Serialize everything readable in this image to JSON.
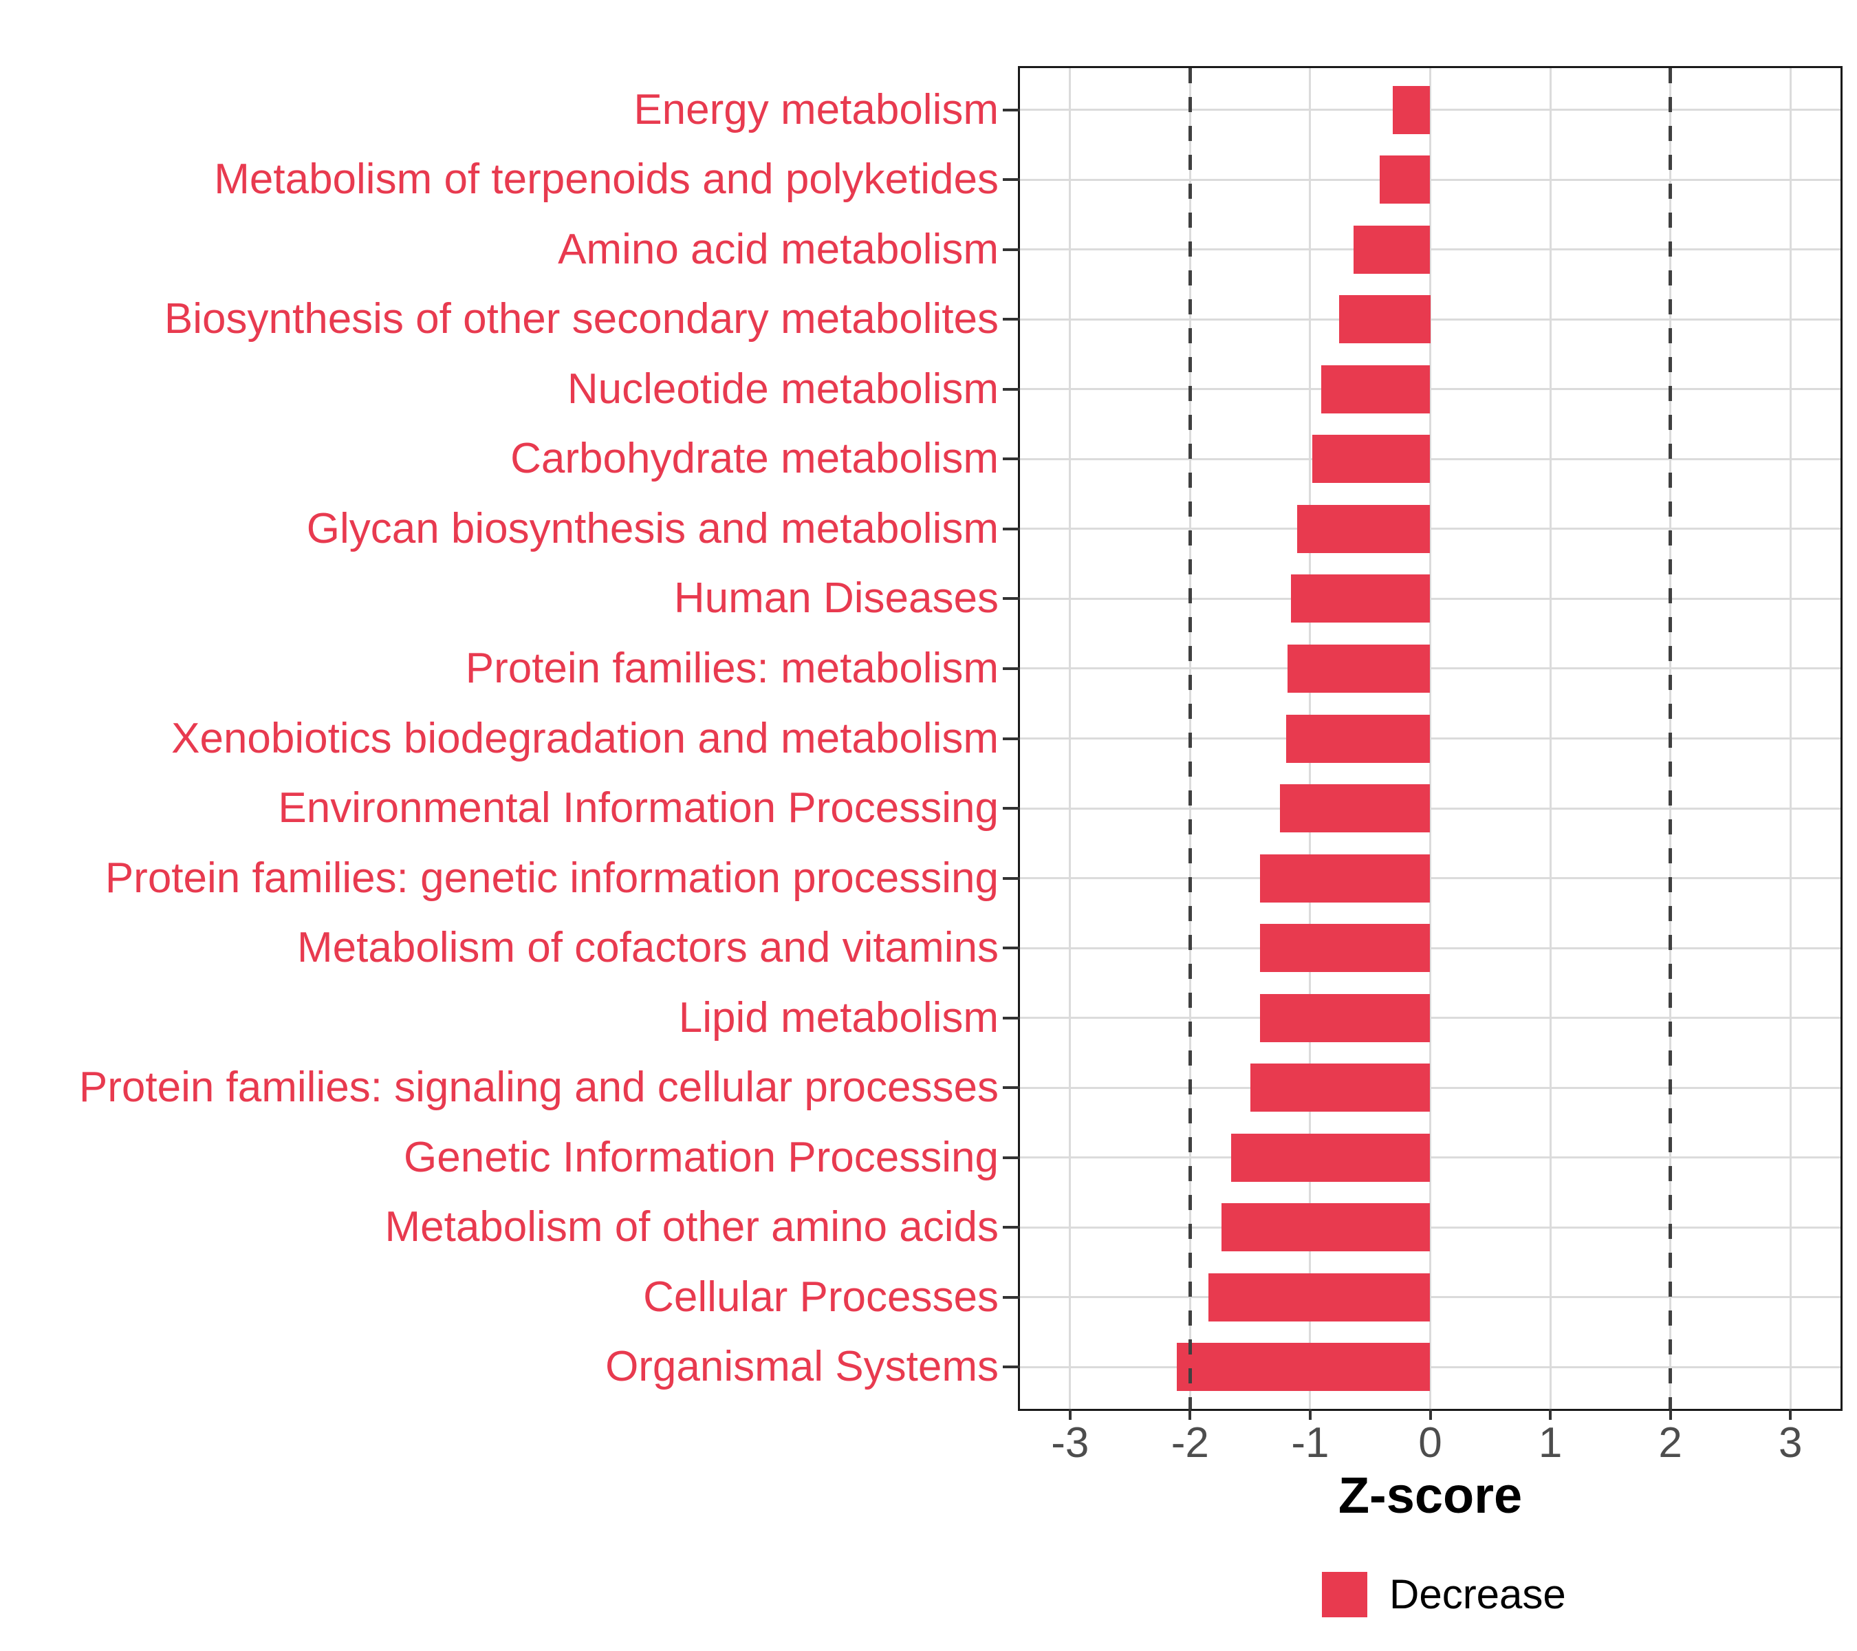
{
  "chart_data": {
    "type": "bar",
    "orientation": "horizontal",
    "title": "",
    "xlabel": "Z-score",
    "categories": [
      "Energy metabolism",
      "Metabolism of terpenoids and polyketides",
      "Amino acid metabolism",
      "Biosynthesis of other secondary metabolites",
      "Nucleotide metabolism",
      "Carbohydrate metabolism",
      "Glycan biosynthesis and metabolism",
      "Human Diseases",
      "Protein families: metabolism",
      "Xenobiotics biodegradation and metabolism",
      "Environmental Information Processing",
      "Protein families: genetic information processing",
      "Metabolism of cofactors and vitamins",
      "Lipid metabolism",
      "Protein families: signaling and cellular processes",
      "Genetic Information Processing",
      "Metabolism of other amino acids",
      "Cellular Processes",
      "Organismal Systems"
    ],
    "values": [
      -0.31,
      -0.42,
      -0.64,
      -0.76,
      -0.91,
      -0.98,
      -1.11,
      -1.16,
      -1.19,
      -1.2,
      -1.25,
      -1.42,
      -1.42,
      -1.42,
      -1.5,
      -1.66,
      -1.74,
      -1.85,
      -2.11
    ],
    "x_ticks": [
      "-3",
      "-2",
      "-1",
      "0",
      "1",
      "2",
      "3"
    ],
    "x_tick_values": [
      -3,
      -2,
      -1,
      0,
      1,
      2,
      3
    ],
    "xlim": [
      -3.417,
      3.417
    ],
    "reference_lines": [
      -2,
      2
    ],
    "legend": [
      {
        "label": "Decrease",
        "color": "#E83A4F"
      }
    ],
    "legend_position": "bottom",
    "grid": true,
    "colors": {
      "bar": "#E83A4F",
      "category_label": "#E83A4F",
      "tick_label": "#4D4D4D",
      "gridline": "#DBDBDB",
      "reference_line": "#404040",
      "panel_border": "#1A1A1A",
      "tick_mark": "#333333",
      "background": "#FFFFFF"
    }
  }
}
